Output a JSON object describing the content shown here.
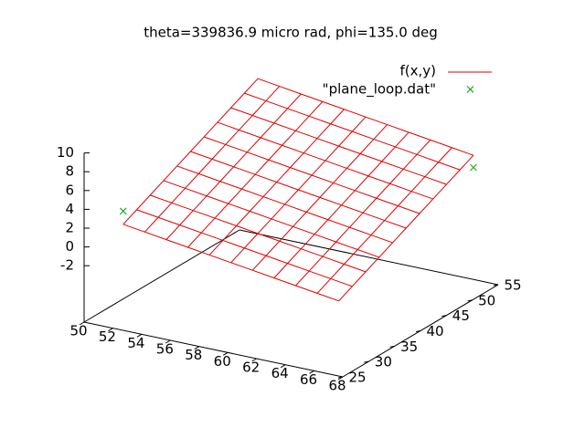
{
  "chart_data": {
    "type": "surface3d",
    "title": "theta=339836.9 micro rad,  phi=135.0 deg",
    "xlim": [
      50,
      68
    ],
    "xticks": [
      50,
      52,
      54,
      56,
      58,
      60,
      62,
      64,
      66,
      68
    ],
    "ylim": [
      25,
      55
    ],
    "yticks": [
      25,
      30,
      35,
      40,
      45,
      50,
      55
    ],
    "zlim": [
      -2,
      10
    ],
    "zticks": [
      -2,
      0,
      2,
      4,
      6,
      8,
      10
    ],
    "legend": "top-right",
    "series": [
      {
        "name": "f(x,y)",
        "style": "mesh",
        "color": "#e00000",
        "x": [
          52,
          53.5,
          55,
          56.5,
          58,
          59.5,
          61,
          62.5,
          64,
          65.5,
          67
        ],
        "y": [
          27,
          29.6,
          32.2,
          34.8,
          37.4,
          40,
          42.6,
          45.2,
          47.8,
          50.4,
          53
        ],
        "z": [
          [
            2.4,
            2.07,
            1.74,
            1.41,
            1.08,
            0.75,
            0.42,
            0.09,
            -0.24,
            -0.57,
            -0.9
          ],
          [
            3.1,
            2.77,
            2.44,
            2.11,
            1.78,
            1.45,
            1.12,
            0.79,
            0.46,
            0.13,
            -0.2
          ],
          [
            3.8,
            3.47,
            3.14,
            2.81,
            2.48,
            2.15,
            1.82,
            1.49,
            1.16,
            0.83,
            0.5
          ],
          [
            4.5,
            4.17,
            3.84,
            3.51,
            3.18,
            2.85,
            2.52,
            2.19,
            1.86,
            1.53,
            1.2
          ],
          [
            5.2,
            4.87,
            4.54,
            4.21,
            3.88,
            3.55,
            3.22,
            2.89,
            2.56,
            2.23,
            1.9
          ],
          [
            5.9,
            5.57,
            5.24,
            4.91,
            4.58,
            4.25,
            3.92,
            3.59,
            3.26,
            2.93,
            2.6
          ],
          [
            6.6,
            6.27,
            5.94,
            5.61,
            5.28,
            4.95,
            4.62,
            4.29,
            3.96,
            3.63,
            3.3
          ],
          [
            7.3,
            6.97,
            6.64,
            6.31,
            5.98,
            5.65,
            5.32,
            4.99,
            4.66,
            4.33,
            4.0
          ],
          [
            8.0,
            7.67,
            7.34,
            7.01,
            6.68,
            6.35,
            6.02,
            5.69,
            5.36,
            5.03,
            4.7
          ],
          [
            8.7,
            8.37,
            8.04,
            7.71,
            7.38,
            7.05,
            6.72,
            6.39,
            6.06,
            5.73,
            5.4
          ],
          [
            9.4,
            9.07,
            8.74,
            8.41,
            8.08,
            7.75,
            7.42,
            7.09,
            6.76,
            6.43,
            6.1
          ]
        ]
      },
      {
        "name": "\"plane_loop.dat\"",
        "style": "points",
        "color": "#00a000",
        "x": [
          52,
          67
        ],
        "y": [
          27,
          53
        ],
        "z": [
          3.8,
          4.8
        ]
      }
    ]
  }
}
